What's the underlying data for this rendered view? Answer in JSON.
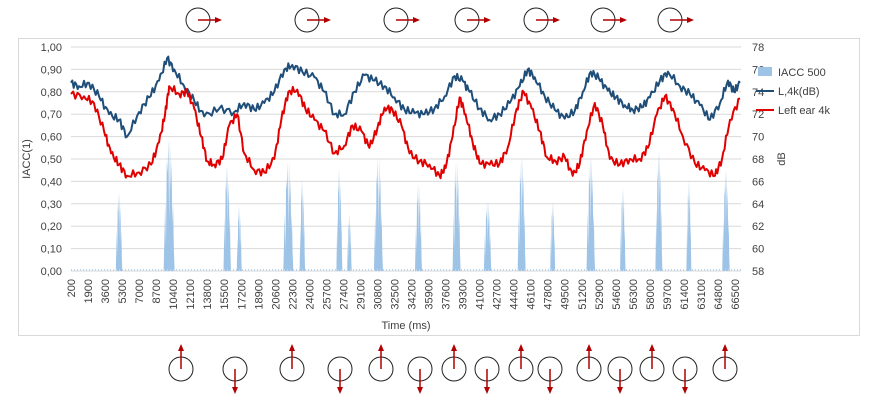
{
  "chart_data": {
    "type": "line",
    "x_unit_label": "Time (ms)",
    "ylabel_left": "IACC(1)",
    "ylabel_right": "dB",
    "ylim_left": [
      0,
      1
    ],
    "ylim_right": [
      58,
      78
    ],
    "left_ticks": [
      "0,00",
      "0,10",
      "0,20",
      "0,30",
      "0,40",
      "0,50",
      "0,60",
      "0,70",
      "0,80",
      "0,90",
      "1,00"
    ],
    "right_ticks": [
      "58",
      "60",
      "62",
      "64",
      "66",
      "68",
      "70",
      "72",
      "74",
      "76",
      "78"
    ],
    "x_ticks": [
      "200",
      "1900",
      "3600",
      "5300",
      "7000",
      "8700",
      "10400",
      "12100",
      "13800",
      "15500",
      "17200",
      "18900",
      "20600",
      "22300",
      "24000",
      "25700",
      "27400",
      "29100",
      "30800",
      "32500",
      "34200",
      "35900",
      "37600",
      "39300",
      "41000",
      "42700",
      "44400",
      "46100",
      "47800",
      "49500",
      "51200",
      "52900",
      "54600",
      "56300",
      "58000",
      "59700",
      "61400",
      "63100",
      "64800",
      "66500"
    ],
    "xlim": [
      200,
      67100
    ],
    "legend": [
      {
        "label": "IACC 500",
        "color": "#9dc3e6",
        "kind": "area"
      },
      {
        "label": "L,4k(dB)",
        "color": "#1f4e79",
        "kind": "line"
      },
      {
        "label": "Left ear 4k",
        "color": "#e00000",
        "kind": "line"
      }
    ],
    "series": [
      {
        "name": "IACC 500",
        "axis": "left",
        "type": "area",
        "peaks": [
          {
            "x": 5000,
            "w": 650,
            "h": 0.36
          },
          {
            "x": 10000,
            "w": 1100,
            "h": 0.6
          },
          {
            "x": 15800,
            "w": 750,
            "h": 0.48
          },
          {
            "x": 17000,
            "w": 500,
            "h": 0.3
          },
          {
            "x": 21900,
            "w": 1000,
            "h": 0.5
          },
          {
            "x": 23300,
            "w": 550,
            "h": 0.42
          },
          {
            "x": 27000,
            "w": 600,
            "h": 0.47
          },
          {
            "x": 28000,
            "w": 450,
            "h": 0.26
          },
          {
            "x": 30900,
            "w": 900,
            "h": 0.52
          },
          {
            "x": 34900,
            "w": 700,
            "h": 0.4
          },
          {
            "x": 38700,
            "w": 800,
            "h": 0.5
          },
          {
            "x": 41800,
            "w": 750,
            "h": 0.32
          },
          {
            "x": 45200,
            "w": 800,
            "h": 0.52
          },
          {
            "x": 48300,
            "w": 500,
            "h": 0.32
          },
          {
            "x": 52100,
            "w": 850,
            "h": 0.52
          },
          {
            "x": 55300,
            "w": 550,
            "h": 0.38
          },
          {
            "x": 58900,
            "w": 700,
            "h": 0.55
          },
          {
            "x": 61900,
            "w": 500,
            "h": 0.42
          },
          {
            "x": 65600,
            "w": 750,
            "h": 0.46
          }
        ]
      },
      {
        "name": "L,4k(dB)",
        "axis": "right",
        "type": "line",
        "color": "#1f4e79",
        "points": [
          [
            200,
            74.8
          ],
          [
            1000,
            74.5
          ],
          [
            2000,
            74.8
          ],
          [
            3000,
            73.6
          ],
          [
            4000,
            72.0
          ],
          [
            5000,
            71.5
          ],
          [
            5800,
            70.0
          ],
          [
            7000,
            72.2
          ],
          [
            8000,
            73.5
          ],
          [
            9000,
            75.0
          ],
          [
            9800,
            77.0
          ],
          [
            10500,
            76.0
          ],
          [
            11500,
            74.5
          ],
          [
            12500,
            73.2
          ],
          [
            13500,
            71.8
          ],
          [
            15000,
            72.5
          ],
          [
            16500,
            72.2
          ],
          [
            17500,
            73.0
          ],
          [
            18500,
            72.4
          ],
          [
            19500,
            73.0
          ],
          [
            20500,
            74.0
          ],
          [
            21500,
            76.0
          ],
          [
            22300,
            76.4
          ],
          [
            23300,
            75.8
          ],
          [
            24500,
            75.3
          ],
          [
            25500,
            74.0
          ],
          [
            26500,
            72.0
          ],
          [
            27500,
            72.0
          ],
          [
            28500,
            74.0
          ],
          [
            29500,
            75.5
          ],
          [
            30500,
            75.0
          ],
          [
            31500,
            74.5
          ],
          [
            32500,
            73.5
          ],
          [
            33500,
            72.4
          ],
          [
            34500,
            72.1
          ],
          [
            35500,
            72.0
          ],
          [
            36500,
            72.5
          ],
          [
            37500,
            73.6
          ],
          [
            38500,
            75.4
          ],
          [
            39300,
            75.0
          ],
          [
            40000,
            74.0
          ],
          [
            41000,
            72.5
          ],
          [
            42000,
            71.5
          ],
          [
            43000,
            72.0
          ],
          [
            44000,
            73.0
          ],
          [
            45000,
            74.5
          ],
          [
            45800,
            76.0
          ],
          [
            46500,
            75.3
          ],
          [
            47500,
            73.6
          ],
          [
            48500,
            72.4
          ],
          [
            49500,
            71.6
          ],
          [
            50500,
            72.3
          ],
          [
            51300,
            74.0
          ],
          [
            52100,
            75.8
          ],
          [
            52900,
            75.2
          ],
          [
            53800,
            74.1
          ],
          [
            54600,
            73.5
          ],
          [
            55500,
            72.8
          ],
          [
            56300,
            72.4
          ],
          [
            57200,
            72.6
          ],
          [
            58000,
            73.5
          ],
          [
            59000,
            75.0
          ],
          [
            59800,
            75.8
          ],
          [
            61000,
            74.5
          ],
          [
            62000,
            73.8
          ],
          [
            63000,
            72.8
          ],
          [
            64000,
            71.5
          ],
          [
            65000,
            73.0
          ],
          [
            65800,
            75.0
          ],
          [
            66400,
            74.0
          ],
          [
            67000,
            74.8
          ]
        ]
      },
      {
        "name": "Left ear 4k",
        "axis": "right",
        "type": "line",
        "color": "#e00000",
        "points": [
          [
            200,
            73.8
          ],
          [
            1500,
            73.6
          ],
          [
            2500,
            73.0
          ],
          [
            3500,
            70.5
          ],
          [
            4200,
            68.5
          ],
          [
            5000,
            67.5
          ],
          [
            5800,
            66.5
          ],
          [
            7000,
            66.8
          ],
          [
            8200,
            67.5
          ],
          [
            9000,
            69.5
          ],
          [
            9600,
            72.0
          ],
          [
            10000,
            74.5
          ],
          [
            11000,
            73.8
          ],
          [
            11800,
            74.0
          ],
          [
            12500,
            72.5
          ],
          [
            13200,
            70.0
          ],
          [
            13800,
            67.8
          ],
          [
            14500,
            67.5
          ],
          [
            15300,
            68.0
          ],
          [
            16000,
            71.0
          ],
          [
            16800,
            72.0
          ],
          [
            17500,
            68.5
          ],
          [
            18500,
            67.0
          ],
          [
            19500,
            66.8
          ],
          [
            20500,
            68.0
          ],
          [
            21200,
            71.5
          ],
          [
            21900,
            74.0
          ],
          [
            22800,
            74.2
          ],
          [
            23600,
            72.5
          ],
          [
            24500,
            71.5
          ],
          [
            25500,
            70.5
          ],
          [
            26500,
            68.5
          ],
          [
            27500,
            69.2
          ],
          [
            28300,
            71.0
          ],
          [
            29200,
            70.5
          ],
          [
            30000,
            69.0
          ],
          [
            30800,
            70.8
          ],
          [
            31500,
            72.6
          ],
          [
            32300,
            72.4
          ],
          [
            33200,
            71.0
          ],
          [
            34000,
            68.5
          ],
          [
            35000,
            67.8
          ],
          [
            36000,
            67.5
          ],
          [
            37000,
            66.5
          ],
          [
            37600,
            67.2
          ],
          [
            38300,
            70.0
          ],
          [
            39000,
            73.5
          ],
          [
            39600,
            72.0
          ],
          [
            40300,
            69.5
          ],
          [
            41000,
            67.6
          ],
          [
            42000,
            67.5
          ],
          [
            43000,
            67.6
          ],
          [
            43800,
            69.0
          ],
          [
            44700,
            72.5
          ],
          [
            45400,
            74.0
          ],
          [
            46200,
            72.5
          ],
          [
            47000,
            70.5
          ],
          [
            47700,
            68.2
          ],
          [
            48600,
            67.8
          ],
          [
            49500,
            68.2
          ],
          [
            50300,
            66.5
          ],
          [
            51000,
            67.6
          ],
          [
            51700,
            70.5
          ],
          [
            52500,
            73.0
          ],
          [
            53300,
            71.0
          ],
          [
            54000,
            68.0
          ],
          [
            55000,
            67.5
          ],
          [
            56000,
            68.0
          ],
          [
            57000,
            68.0
          ],
          [
            57800,
            69.0
          ],
          [
            58700,
            72.0
          ],
          [
            59500,
            73.6
          ],
          [
            60300,
            72.5
          ],
          [
            61300,
            70.0
          ],
          [
            62500,
            67.6
          ],
          [
            63500,
            67.0
          ],
          [
            64500,
            66.5
          ],
          [
            65200,
            68.0
          ],
          [
            66000,
            71.5
          ],
          [
            67000,
            73.4
          ]
        ]
      }
    ]
  },
  "arrows_top": [
    {
      "x": 200
    },
    {
      "x": 10000
    },
    {
      "x": 23300
    },
    {
      "x": 33500
    },
    {
      "x": 41800
    },
    {
      "x": 49300
    },
    {
      "x": 56900
    },
    {
      "x": 64500
    }
  ],
  "arrows_bottom": [
    {
      "x": 10600,
      "dir": "up"
    },
    {
      "x": 16200,
      "dir": "down"
    },
    {
      "x": 22500,
      "dir": "up"
    },
    {
      "x": 27800,
      "dir": "down"
    },
    {
      "x": 31700,
      "dir": "up"
    },
    {
      "x": 35400,
      "dir": "down"
    },
    {
      "x": 38800,
      "dir": "up"
    },
    {
      "x": 42400,
      "dir": "down"
    },
    {
      "x": 45900,
      "dir": "up"
    },
    {
      "x": 48900,
      "dir": "down"
    },
    {
      "x": 52800,
      "dir": "up"
    },
    {
      "x": 56100,
      "dir": "down"
    },
    {
      "x": 59800,
      "dir": "up"
    },
    {
      "x": 63200,
      "dir": "down"
    },
    {
      "x": 66200,
      "dir": "up"
    }
  ]
}
